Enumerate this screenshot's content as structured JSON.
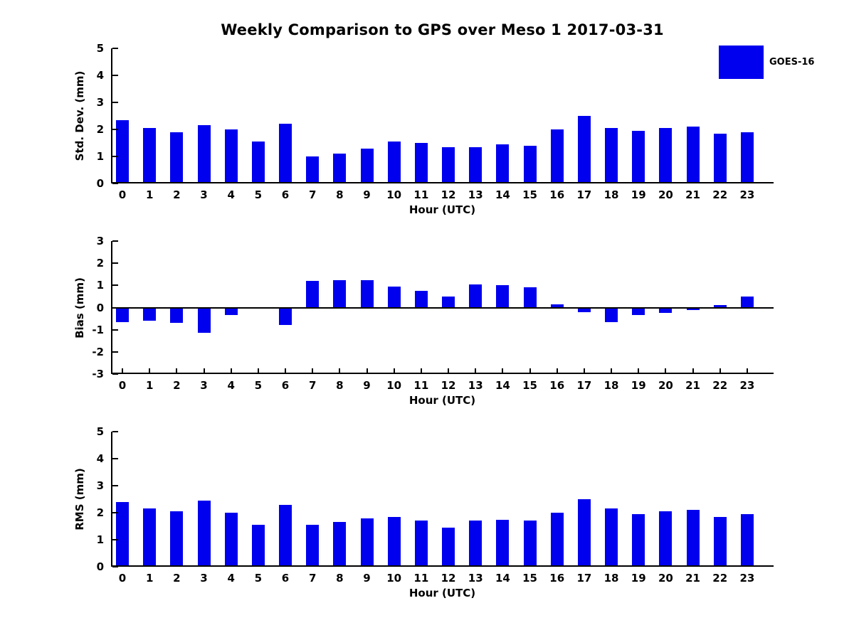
{
  "figure": {
    "title": "Weekly Comparison to GPS over Meso 1 2017-03-31",
    "background_color": "#ffffff",
    "bar_color": "#0000ee",
    "axis_color": "#000000"
  },
  "legend": {
    "label": "GOES-16",
    "swatch_color": "#0000ee",
    "position": "top-right"
  },
  "chart_data": [
    {
      "type": "bar",
      "ylabel": "Std. Dev. (mm)",
      "xlabel": "Hour (UTC)",
      "ylim": [
        0,
        5
      ],
      "yticks": [
        0,
        1,
        2,
        3,
        4,
        5
      ],
      "grid": false,
      "categories": [
        "0",
        "1",
        "2",
        "3",
        "4",
        "5",
        "6",
        "7",
        "8",
        "9",
        "10",
        "11",
        "12",
        "13",
        "14",
        "15",
        "16",
        "17",
        "18",
        "19",
        "20",
        "21",
        "22",
        "23"
      ],
      "series": [
        {
          "name": "GOES-16",
          "values": [
            2.35,
            2.05,
            1.9,
            2.15,
            2.0,
            1.55,
            2.2,
            1.0,
            1.1,
            1.3,
            1.55,
            1.5,
            1.35,
            1.35,
            1.45,
            1.4,
            2.0,
            2.5,
            2.05,
            1.95,
            2.05,
            2.1,
            1.85,
            1.9
          ]
        }
      ]
    },
    {
      "type": "bar",
      "ylabel": "Bias (mm)",
      "xlabel": "Hour (UTC)",
      "ylim": [
        -3,
        3
      ],
      "yticks": [
        -3,
        -2,
        -1,
        0,
        1,
        2,
        3
      ],
      "grid": false,
      "categories": [
        "0",
        "1",
        "2",
        "3",
        "4",
        "5",
        "6",
        "7",
        "8",
        "9",
        "10",
        "11",
        "12",
        "13",
        "14",
        "15",
        "16",
        "17",
        "18",
        "19",
        "20",
        "21",
        "22",
        "23"
      ],
      "series": [
        {
          "name": "GOES-16",
          "values": [
            -0.65,
            -0.6,
            -0.7,
            -1.15,
            -0.35,
            0,
            -0.8,
            1.2,
            1.25,
            1.25,
            0.95,
            0.75,
            0.5,
            1.05,
            1.0,
            0.9,
            0.15,
            -0.2,
            -0.65,
            -0.35,
            -0.25,
            -0.1,
            0.1,
            0.5
          ]
        }
      ]
    },
    {
      "type": "bar",
      "ylabel": "RMS (mm)",
      "xlabel": "Hour (UTC)",
      "ylim": [
        0,
        5
      ],
      "yticks": [
        0,
        1,
        2,
        3,
        4,
        5
      ],
      "grid": false,
      "categories": [
        "0",
        "1",
        "2",
        "3",
        "4",
        "5",
        "6",
        "7",
        "8",
        "9",
        "10",
        "11",
        "12",
        "13",
        "14",
        "15",
        "16",
        "17",
        "18",
        "19",
        "20",
        "21",
        "22",
        "23"
      ],
      "series": [
        {
          "name": "GOES-16",
          "values": [
            2.4,
            2.15,
            2.05,
            2.45,
            2.0,
            1.55,
            2.3,
            1.55,
            1.65,
            1.8,
            1.85,
            1.7,
            1.45,
            1.7,
            1.75,
            1.7,
            2.0,
            2.5,
            2.15,
            1.95,
            2.05,
            2.1,
            1.85,
            1.95
          ]
        }
      ]
    }
  ]
}
